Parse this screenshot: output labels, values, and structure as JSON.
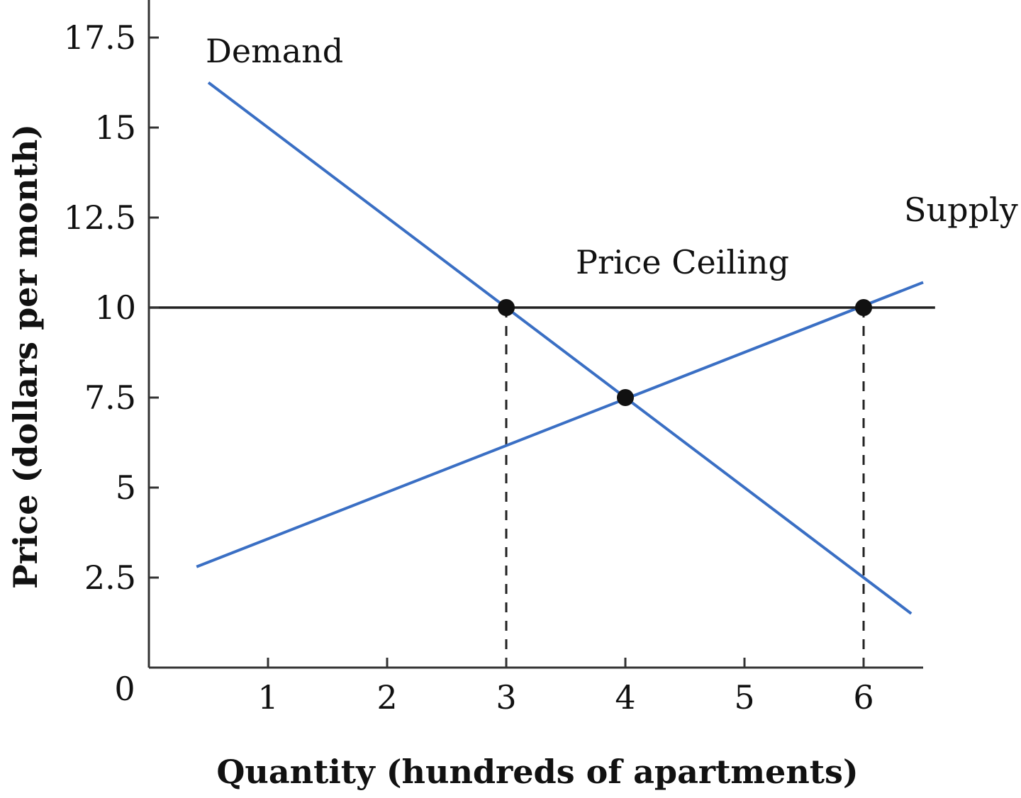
{
  "chart_data": {
    "type": "line",
    "xlabel": "Quantity (hundreds of apartments)",
    "ylabel": "Price (dollars per month)",
    "xlim": [
      0,
      6.5
    ],
    "ylim": [
      0,
      18.5
    ],
    "origin_label": "0",
    "x_ticks": [
      1,
      2,
      3,
      4,
      5,
      6
    ],
    "y_ticks": [
      2.5,
      5,
      7.5,
      10,
      12.5,
      15,
      17.5
    ],
    "x_tick_labels": [
      "1",
      "2",
      "3",
      "4",
      "5",
      "6"
    ],
    "y_tick_labels": [
      "2.5",
      "5",
      "7.5",
      "10",
      "12.5",
      "15",
      "17.5"
    ],
    "grid": false,
    "series": [
      {
        "name": "Demand",
        "color": "#3a6fc4",
        "x": [
          0.5,
          6.4
        ],
        "y": [
          16.25,
          1.5
        ]
      },
      {
        "name": "Supply",
        "color": "#3a6fc4",
        "x": [
          0.4,
          6.5
        ],
        "y": [
          2.8,
          10.7
        ]
      }
    ],
    "price_ceiling": {
      "name": "Price Ceiling",
      "value": 10,
      "x_range": [
        0,
        6.6
      ],
      "color": "#222222"
    },
    "points": [
      {
        "x": 3,
        "y": 10
      },
      {
        "x": 4,
        "y": 7.5
      },
      {
        "x": 6,
        "y": 10
      }
    ],
    "dashed_guides": [
      {
        "x": 3,
        "from_y": 0,
        "to_y": 10
      },
      {
        "x": 6,
        "from_y": 0,
        "to_y": 10
      }
    ]
  }
}
